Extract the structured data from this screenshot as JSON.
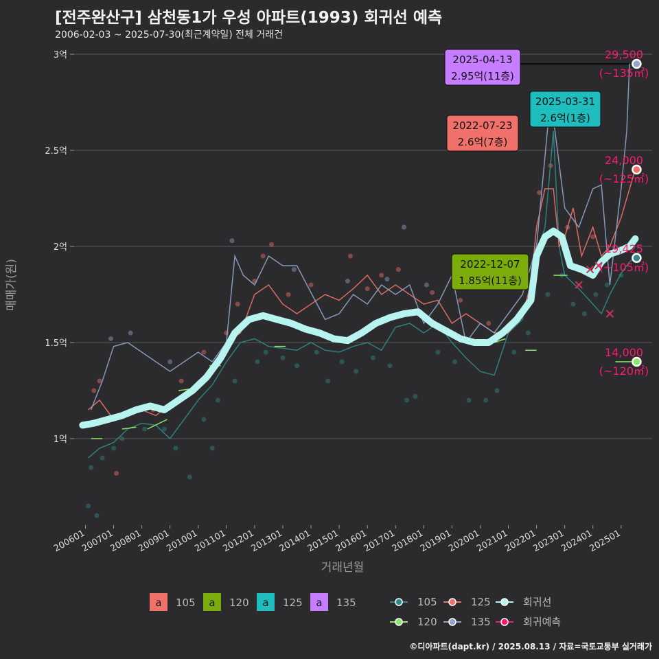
{
  "title": "[전주완산구] 삼천동1가 우성 아파트(1993) 회귀선 예측",
  "subtitle": "2006-02-03 ~ 2025-07-30(최근계약일) 전체 거래건",
  "credit": "©디아파트(dapt.kr) / 2025.08.13 / 자료=국토교통부 실거래가",
  "colors": {
    "background": "#2b2b2d",
    "grid": "#5a5a5c",
    "s105": "#2e8b8a",
    "s120": "#8fe86a",
    "s125": "#f0716a",
    "s135": "#8fa4c8",
    "regression": "#b8f4ef",
    "forecast": "#ff1a6e"
  },
  "chart_data": {
    "type": "line",
    "xlabel": "거래년월",
    "ylabel": "매매가(원)",
    "xlim": [
      2005.6,
      2026.1
    ],
    "ylim": [
      0.55,
      3.05
    ],
    "x_ticks": [
      {
        "label": "200601",
        "v": 2006.0
      },
      {
        "label": "200701",
        "v": 2007.0
      },
      {
        "label": "200801",
        "v": 2008.0
      },
      {
        "label": "200901",
        "v": 2009.0
      },
      {
        "label": "201001",
        "v": 2010.0
      },
      {
        "label": "201101",
        "v": 2011.0
      },
      {
        "label": "201201",
        "v": 2012.0
      },
      {
        "label": "201301",
        "v": 2013.0
      },
      {
        "label": "201401",
        "v": 2014.0
      },
      {
        "label": "201501",
        "v": 2015.0
      },
      {
        "label": "201601",
        "v": 2016.0
      },
      {
        "label": "201701",
        "v": 2017.0
      },
      {
        "label": "201801",
        "v": 2018.0
      },
      {
        "label": "201901",
        "v": 2019.0
      },
      {
        "label": "202001",
        "v": 2020.0
      },
      {
        "label": "202101",
        "v": 2021.0
      },
      {
        "label": "202201",
        "v": 2022.0
      },
      {
        "label": "202301",
        "v": 2023.0
      },
      {
        "label": "202401",
        "v": 2024.0
      },
      {
        "label": "202501",
        "v": 2025.0
      }
    ],
    "y_ticks": [
      {
        "label": "1억",
        "v": 1.0
      },
      {
        "label": "1.5억",
        "v": 1.5
      },
      {
        "label": "2억",
        "v": 2.0
      },
      {
        "label": "2.5억",
        "v": 2.5
      },
      {
        "label": "3억",
        "v": 3.0
      }
    ],
    "series": [
      {
        "name": "105",
        "color": "#2e8b8a",
        "x": [
          2006.1,
          2006.5,
          2007.0,
          2007.5,
          2008.0,
          2008.5,
          2009.0,
          2009.5,
          2010.0,
          2010.5,
          2011.0,
          2011.5,
          2012.0,
          2012.5,
          2013.0,
          2013.5,
          2014.0,
          2014.5,
          2015.0,
          2015.5,
          2016.0,
          2016.5,
          2017.0,
          2017.5,
          2018.0,
          2018.5,
          2019.0,
          2019.5,
          2020.0,
          2020.5,
          2021.0,
          2021.5,
          2022.0,
          2022.3,
          2022.6,
          2022.8,
          2023.0,
          2023.5,
          2024.0,
          2024.3,
          2024.6,
          2025.0,
          2025.3,
          2025.5
        ],
        "y": [
          0.9,
          0.95,
          0.98,
          1.05,
          1.08,
          1.07,
          1.0,
          1.1,
          1.2,
          1.28,
          1.4,
          1.5,
          1.52,
          1.48,
          1.47,
          1.46,
          1.5,
          1.46,
          1.45,
          1.48,
          1.5,
          1.46,
          1.58,
          1.6,
          1.55,
          1.6,
          1.5,
          1.42,
          1.35,
          1.33,
          1.55,
          1.62,
          1.95,
          2.1,
          2.6,
          2.0,
          1.85,
          1.78,
          1.7,
          1.65,
          1.75,
          1.86,
          1.92,
          1.94
        ]
      },
      {
        "name": "125",
        "color": "#f0716a",
        "x": [
          2006.1,
          2006.5,
          2007.0,
          2007.5,
          2008.0,
          2008.5,
          2009.0,
          2009.5,
          2010.0,
          2010.5,
          2011.0,
          2011.5,
          2012.0,
          2012.5,
          2013.0,
          2013.5,
          2014.0,
          2014.5,
          2015.0,
          2015.5,
          2016.0,
          2016.5,
          2017.0,
          2017.5,
          2018.0,
          2018.5,
          2019.0,
          2019.5,
          2020.0,
          2020.5,
          2021.0,
          2021.5,
          2021.8,
          2022.0,
          2022.3,
          2022.6,
          2022.8,
          2023.0,
          2023.3,
          2023.6,
          2024.0,
          2024.3,
          2024.6,
          2025.0,
          2025.3,
          2025.5
        ],
        "y": [
          1.15,
          1.2,
          1.1,
          1.12,
          1.15,
          1.12,
          1.18,
          1.22,
          1.3,
          1.35,
          1.5,
          1.55,
          1.75,
          1.8,
          1.7,
          1.65,
          1.7,
          1.75,
          1.72,
          1.78,
          1.85,
          1.75,
          1.8,
          1.75,
          1.7,
          1.72,
          1.6,
          1.65,
          1.6,
          1.55,
          1.55,
          1.65,
          1.8,
          2.1,
          2.3,
          2.3,
          2.0,
          2.05,
          2.2,
          1.95,
          2.1,
          1.95,
          2.0,
          2.15,
          2.3,
          2.4
        ]
      },
      {
        "name": "135",
        "color": "#8fa4c8",
        "x": [
          2006.2,
          2006.6,
          2007.0,
          2007.5,
          2008.0,
          2009.0,
          2009.5,
          2010.0,
          2010.5,
          2011.0,
          2011.3,
          2011.6,
          2012.0,
          2012.5,
          2013.0,
          2013.5,
          2014.5,
          2015.0,
          2015.5,
          2016.0,
          2016.5,
          2017.0,
          2017.5,
          2018.0,
          2018.5,
          2019.0,
          2019.5,
          2020.0,
          2020.5,
          2021.0,
          2021.5,
          2022.0,
          2022.5,
          2023.0,
          2023.5,
          2024.0,
          2024.3,
          2024.6,
          2025.0,
          2025.2,
          2025.3
        ],
        "y": [
          1.15,
          1.3,
          1.48,
          1.5,
          1.45,
          1.35,
          1.4,
          1.45,
          1.4,
          1.5,
          1.95,
          1.85,
          1.8,
          1.95,
          1.9,
          1.9,
          1.62,
          1.65,
          1.75,
          1.7,
          1.8,
          1.75,
          1.8,
          1.6,
          1.7,
          1.85,
          1.5,
          1.6,
          1.55,
          1.65,
          1.75,
          2.0,
          2.78,
          2.2,
          2.1,
          2.3,
          2.32,
          1.8,
          2.3,
          2.6,
          2.95
        ]
      },
      {
        "name": "120",
        "color": "#8fe86a",
        "segments": [
          [
            [
              2006.2,
              1.0
            ],
            [
              2006.6,
              1.0
            ]
          ],
          [
            [
              2007.3,
              1.05
            ],
            [
              2007.8,
              1.06
            ]
          ],
          [
            [
              2008.2,
              1.05
            ],
            [
              2008.9,
              1.1
            ]
          ],
          [
            [
              2009.3,
              1.25
            ],
            [
              2009.8,
              1.26
            ]
          ],
          [
            [
              2010.4,
              1.38
            ],
            [
              2010.8,
              1.38
            ]
          ],
          [
            [
              2012.7,
              1.48
            ],
            [
              2013.1,
              1.48
            ]
          ],
          [
            [
              2020.5,
              1.5
            ],
            [
              2020.9,
              1.52
            ]
          ],
          [
            [
              2021.6,
              1.46
            ],
            [
              2022.0,
              1.46
            ]
          ],
          [
            [
              2022.6,
              1.85
            ],
            [
              2023.1,
              1.85
            ]
          ],
          [
            [
              2024.8,
              1.4
            ],
            [
              2025.4,
              1.4
            ]
          ]
        ]
      }
    ],
    "regression": {
      "name": "회귀선",
      "x": [
        2005.9,
        2006.3,
        2006.8,
        2007.3,
        2007.8,
        2008.3,
        2008.8,
        2009.3,
        2009.8,
        2010.3,
        2010.8,
        2011.3,
        2011.8,
        2012.3,
        2012.8,
        2013.3,
        2013.8,
        2014.3,
        2014.8,
        2015.3,
        2015.8,
        2016.3,
        2016.8,
        2017.3,
        2017.8,
        2018.3,
        2018.8,
        2019.3,
        2019.8,
        2020.3,
        2020.8,
        2021.3,
        2021.8,
        2022.0,
        2022.3,
        2022.6,
        2022.9,
        2023.2,
        2023.6,
        2024.0,
        2024.3,
        2024.6,
        2025.0,
        2025.3,
        2025.5
      ],
      "y": [
        1.07,
        1.08,
        1.1,
        1.12,
        1.15,
        1.17,
        1.15,
        1.2,
        1.25,
        1.32,
        1.42,
        1.55,
        1.62,
        1.64,
        1.62,
        1.6,
        1.57,
        1.55,
        1.52,
        1.51,
        1.55,
        1.6,
        1.63,
        1.65,
        1.66,
        1.6,
        1.56,
        1.52,
        1.5,
        1.5,
        1.55,
        1.62,
        1.72,
        1.95,
        2.05,
        2.08,
        2.05,
        1.9,
        1.88,
        1.85,
        1.92,
        1.96,
        1.98,
        2.0,
        2.04
      ]
    },
    "forecast": {
      "name": "회귀예측",
      "x_marks": [
        2023.5,
        2023.9,
        2024.2,
        2024.6
      ],
      "y_marks": [
        1.8,
        1.88,
        1.9,
        1.65
      ]
    },
    "scatter": {
      "105": [
        [
          2006.1,
          0.65
        ],
        [
          2006.2,
          0.85
        ],
        [
          2006.4,
          0.6
        ],
        [
          2006.6,
          0.9
        ],
        [
          2007.0,
          0.95
        ],
        [
          2007.3,
          1.0
        ],
        [
          2008.1,
          1.05
        ],
        [
          2008.8,
          1.05
        ],
        [
          2009.2,
          0.95
        ],
        [
          2009.7,
          0.8
        ],
        [
          2010.2,
          1.1
        ],
        [
          2010.5,
          0.95
        ],
        [
          2010.7,
          1.2
        ],
        [
          2011.3,
          1.3
        ],
        [
          2012.1,
          1.4
        ],
        [
          2012.4,
          1.45
        ],
        [
          2013.0,
          1.42
        ],
        [
          2013.5,
          1.38
        ],
        [
          2014.2,
          1.45
        ],
        [
          2014.6,
          1.3
        ],
        [
          2015.1,
          1.4
        ],
        [
          2015.6,
          1.35
        ],
        [
          2016.2,
          1.42
        ],
        [
          2016.8,
          1.38
        ],
        [
          2017.4,
          1.2
        ],
        [
          2017.7,
          1.22
        ],
        [
          2018.5,
          1.45
        ],
        [
          2019.1,
          1.4
        ],
        [
          2019.6,
          1.2
        ],
        [
          2020.2,
          1.2
        ],
        [
          2020.6,
          1.25
        ],
        [
          2021.2,
          1.45
        ],
        [
          2021.7,
          1.55
        ],
        [
          2022.4,
          1.75
        ],
        [
          2022.9,
          1.85
        ],
        [
          2023.3,
          1.7
        ],
        [
          2023.7,
          1.65
        ],
        [
          2024.1,
          1.75
        ],
        [
          2024.5,
          1.8
        ],
        [
          2025.0,
          1.85
        ]
      ],
      "125": [
        [
          2006.3,
          1.25
        ],
        [
          2006.5,
          1.3
        ],
        [
          2007.1,
          0.82
        ],
        [
          2008.4,
          1.15
        ],
        [
          2009.4,
          1.3
        ],
        [
          2010.2,
          1.45
        ],
        [
          2011.0,
          1.55
        ],
        [
          2011.4,
          1.7
        ],
        [
          2012.0,
          1.82
        ],
        [
          2012.3,
          1.95
        ],
        [
          2012.6,
          2.01
        ],
        [
          2013.2,
          1.75
        ],
        [
          2014.0,
          1.8
        ],
        [
          2015.4,
          1.95
        ],
        [
          2016.0,
          1.78
        ],
        [
          2016.5,
          1.85
        ],
        [
          2017.1,
          1.88
        ],
        [
          2018.3,
          1.76
        ],
        [
          2019.3,
          1.72
        ],
        [
          2020.3,
          1.6
        ],
        [
          2021.3,
          1.62
        ],
        [
          2022.1,
          2.28
        ],
        [
          2022.5,
          2.42
        ],
        [
          2023.1,
          2.1
        ],
        [
          2024.0,
          2.05
        ]
      ],
      "135": [
        [
          2006.9,
          1.52
        ],
        [
          2007.6,
          1.55
        ],
        [
          2009.0,
          1.4
        ],
        [
          2011.2,
          2.03
        ],
        [
          2013.4,
          1.88
        ],
        [
          2015.3,
          1.82
        ],
        [
          2016.7,
          1.83
        ],
        [
          2017.3,
          2.1
        ],
        [
          2018.1,
          1.8
        ],
        [
          2019.1,
          1.85
        ],
        [
          2022.6,
          2.78
        ]
      ]
    },
    "callouts": [
      {
        "date": "2025-04-13",
        "price": "2.95억(11층)",
        "bg": "#c77dff",
        "x": 2025.28,
        "y": 2.95
      },
      {
        "date": "2025-03-31",
        "price": "2.6억(1층)",
        "bg": "#1fbdbd",
        "x": 2025.25,
        "y": 2.6
      },
      {
        "date": "2022-07-23",
        "price": "2.6억(7층)",
        "bg": "#f0716a",
        "x": 2022.56,
        "y": 2.6
      },
      {
        "date": "2022-12-07",
        "price": "1.85억(11층)",
        "bg": "#7cab0c",
        "x": 2022.93,
        "y": 1.85
      }
    ],
    "endpoints": [
      {
        "value": "29,500",
        "area": "(~135㎡)",
        "color": "#8fa4c8",
        "y": 2.95
      },
      {
        "value": "24,000",
        "area": "(~125㎡)",
        "color": "#f0716a",
        "y": 2.4
      },
      {
        "value": "19,425",
        "area": "(~105㎡)",
        "color": "#2e8b8a",
        "y": 1.94
      },
      {
        "value": "14,000",
        "area": "(~120㎡)",
        "color": "#8fe86a",
        "y": 1.4
      }
    ],
    "legend_labels": [
      {
        "key": "a",
        "label": "105",
        "color": "#f0716a"
      },
      {
        "key": "a",
        "label": "120",
        "color": "#7cab0c"
      },
      {
        "key": "a",
        "label": "125",
        "color": "#1fbdbd"
      },
      {
        "key": "a",
        "label": "135",
        "color": "#c77dff"
      }
    ],
    "legend_lines": [
      {
        "label": "105",
        "color": "#2e8b8a"
      },
      {
        "label": "125",
        "color": "#f0716a"
      },
      {
        "label": "회귀선",
        "color": "#b8f4ef"
      },
      {
        "label": "120",
        "color": "#8fe86a"
      },
      {
        "label": "135",
        "color": "#8fa4c8"
      },
      {
        "label": "회귀예측",
        "color": "#ff1a6e"
      }
    ]
  }
}
